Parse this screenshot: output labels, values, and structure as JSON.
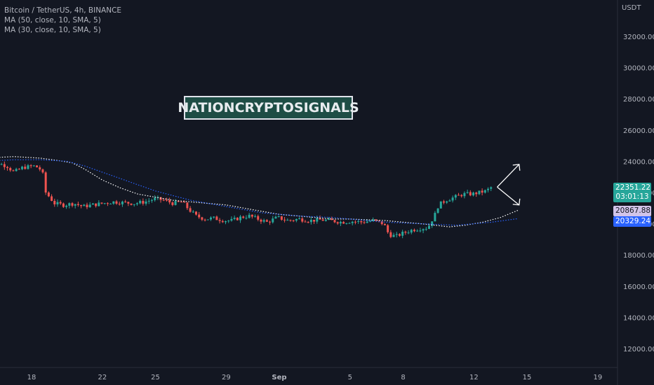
{
  "legend": {
    "symbol": "Bitcoin / TetherUS, 4h, BINANCE",
    "ma1": "MA (50, close, 10, SMA, 5)",
    "ma2": "MA (30, close, 10, SMA, 5)"
  },
  "watermark": "NATIONCRYPTOSIGNALS",
  "currency": "USDT",
  "badges": {
    "last_price": "22351.22",
    "countdown": "03:01:13",
    "ma_white_value": "20867.88",
    "ma_blue_value": "20329.24"
  },
  "colors": {
    "background": "#131722",
    "up": "#26a69a",
    "down": "#ef5350",
    "ma_white": "#ffffff",
    "ma_blue": "#2962ff",
    "axis_text": "#b2b5be"
  },
  "chart_data": {
    "type": "candlestick",
    "title": "Bitcoin / TetherUS, 4h, BINANCE",
    "ylim": [
      11000,
      33500
    ],
    "y_ticks": [
      12000,
      14000,
      16000,
      18000,
      20000,
      22000,
      24000,
      26000,
      28000,
      30000,
      32000
    ],
    "y_tick_labels": [
      "12000.00",
      "14000.00",
      "16000.00",
      "18000.00",
      "20000.00",
      "22000.00",
      "24000.00",
      "26000.00",
      "28000.00",
      "30000.00",
      "32000.00"
    ],
    "x_ticks": [
      {
        "label": "18",
        "day": 18
      },
      {
        "label": "22",
        "day": 22
      },
      {
        "label": "25",
        "day": 25
      },
      {
        "label": "29",
        "day": 29
      },
      {
        "label": "Sep",
        "day": 32
      },
      {
        "label": "5",
        "day": 36
      },
      {
        "label": "8",
        "day": 39
      },
      {
        "label": "12",
        "day": 43
      },
      {
        "label": "15",
        "day": 46
      },
      {
        "label": "19",
        "day": 50
      }
    ],
    "xlim": [
      15.2,
      52.5
    ],
    "close_path": [
      [
        15.3,
        24000
      ],
      [
        16.0,
        23900
      ],
      [
        16.6,
        23700
      ],
      [
        17.0,
        23300
      ],
      [
        17.5,
        23600
      ],
      [
        18.2,
        23700
      ],
      [
        18.6,
        23400
      ],
      [
        18.8,
        22000
      ],
      [
        19.3,
        21300
      ],
      [
        19.8,
        21200
      ],
      [
        20.4,
        21300
      ],
      [
        20.9,
        21100
      ],
      [
        21.4,
        21200
      ],
      [
        22.0,
        21300
      ],
      [
        22.6,
        21400
      ],
      [
        23.2,
        21350
      ],
      [
        23.8,
        21300
      ],
      [
        24.4,
        21400
      ],
      [
        25.0,
        21600
      ],
      [
        25.5,
        21500
      ],
      [
        26.0,
        21300
      ],
      [
        26.5,
        21400
      ],
      [
        26.9,
        20900
      ],
      [
        27.3,
        20500
      ],
      [
        27.8,
        20300
      ],
      [
        28.3,
        20350
      ],
      [
        28.9,
        20200
      ],
      [
        29.3,
        20200
      ],
      [
        29.8,
        20400
      ],
      [
        30.3,
        20500
      ],
      [
        30.8,
        20300
      ],
      [
        31.3,
        20100
      ],
      [
        31.9,
        20400
      ],
      [
        32.5,
        20200
      ],
      [
        33.1,
        20300
      ],
      [
        33.7,
        20200
      ],
      [
        34.3,
        20250
      ],
      [
        34.9,
        20200
      ],
      [
        35.5,
        20100
      ],
      [
        36.1,
        20150
      ],
      [
        36.7,
        20100
      ],
      [
        37.3,
        20200
      ],
      [
        37.9,
        20000
      ],
      [
        38.2,
        19300
      ],
      [
        38.6,
        19200
      ],
      [
        39.0,
        19400
      ],
      [
        39.5,
        19600
      ],
      [
        40.0,
        19700
      ],
      [
        40.4,
        19750
      ],
      [
        40.8,
        20600
      ],
      [
        41.0,
        21200
      ],
      [
        41.4,
        21500
      ],
      [
        41.9,
        21700
      ],
      [
        42.4,
        21900
      ],
      [
        42.9,
        21900
      ],
      [
        43.3,
        22000
      ],
      [
        43.7,
        22100
      ],
      [
        44.0,
        22350
      ]
    ],
    "series": [
      {
        "name": "MA (50, close, 10, SMA, 5)",
        "color": "#ffffff",
        "points": [
          [
            15.3,
            24200
          ],
          [
            17.0,
            24300
          ],
          [
            18.5,
            24200
          ],
          [
            19.5,
            24050
          ],
          [
            20.3,
            23900
          ],
          [
            21.0,
            23500
          ],
          [
            22.0,
            22800
          ],
          [
            23.0,
            22300
          ],
          [
            24.0,
            21900
          ],
          [
            25.0,
            21700
          ],
          [
            26.0,
            21500
          ],
          [
            27.0,
            21400
          ],
          [
            28.0,
            21300
          ],
          [
            29.0,
            21200
          ],
          [
            30.0,
            21000
          ],
          [
            31.0,
            20800
          ],
          [
            32.0,
            20600
          ],
          [
            33.0,
            20500
          ],
          [
            34.0,
            20400
          ],
          [
            35.0,
            20300
          ],
          [
            36.0,
            20300
          ],
          [
            37.0,
            20250
          ],
          [
            38.0,
            20200
          ],
          [
            39.0,
            20100
          ],
          [
            40.0,
            20000
          ],
          [
            40.8,
            19900
          ],
          [
            41.6,
            19800
          ],
          [
            42.5,
            19900
          ],
          [
            43.5,
            20100
          ],
          [
            44.5,
            20400
          ],
          [
            45.5,
            20867
          ]
        ]
      },
      {
        "name": "MA (30, close, 10, SMA, 5)",
        "color": "#2962ff",
        "points": [
          [
            15.3,
            24000
          ],
          [
            17.0,
            24100
          ],
          [
            18.5,
            24100
          ],
          [
            20.0,
            24000
          ],
          [
            21.0,
            23700
          ],
          [
            22.0,
            23300
          ],
          [
            23.0,
            22900
          ],
          [
            24.0,
            22500
          ],
          [
            25.0,
            22100
          ],
          [
            26.0,
            21800
          ],
          [
            27.0,
            21500
          ],
          [
            28.0,
            21300
          ],
          [
            29.0,
            21100
          ],
          [
            30.0,
            20900
          ],
          [
            31.0,
            20700
          ],
          [
            32.0,
            20600
          ],
          [
            33.0,
            20500
          ],
          [
            34.0,
            20450
          ],
          [
            35.0,
            20400
          ],
          [
            36.0,
            20300
          ],
          [
            37.0,
            20200
          ],
          [
            38.0,
            20100
          ],
          [
            39.0,
            20050
          ],
          [
            40.0,
            20000
          ],
          [
            41.0,
            19950
          ],
          [
            42.0,
            19900
          ],
          [
            43.0,
            20000
          ],
          [
            44.0,
            20100
          ],
          [
            45.0,
            20250
          ],
          [
            45.5,
            20329
          ]
        ]
      }
    ],
    "projection": {
      "origin": [
        44.0,
        22350
      ],
      "up_target": [
        45.0,
        23800
      ],
      "down_target": [
        45.0,
        21200
      ]
    }
  }
}
